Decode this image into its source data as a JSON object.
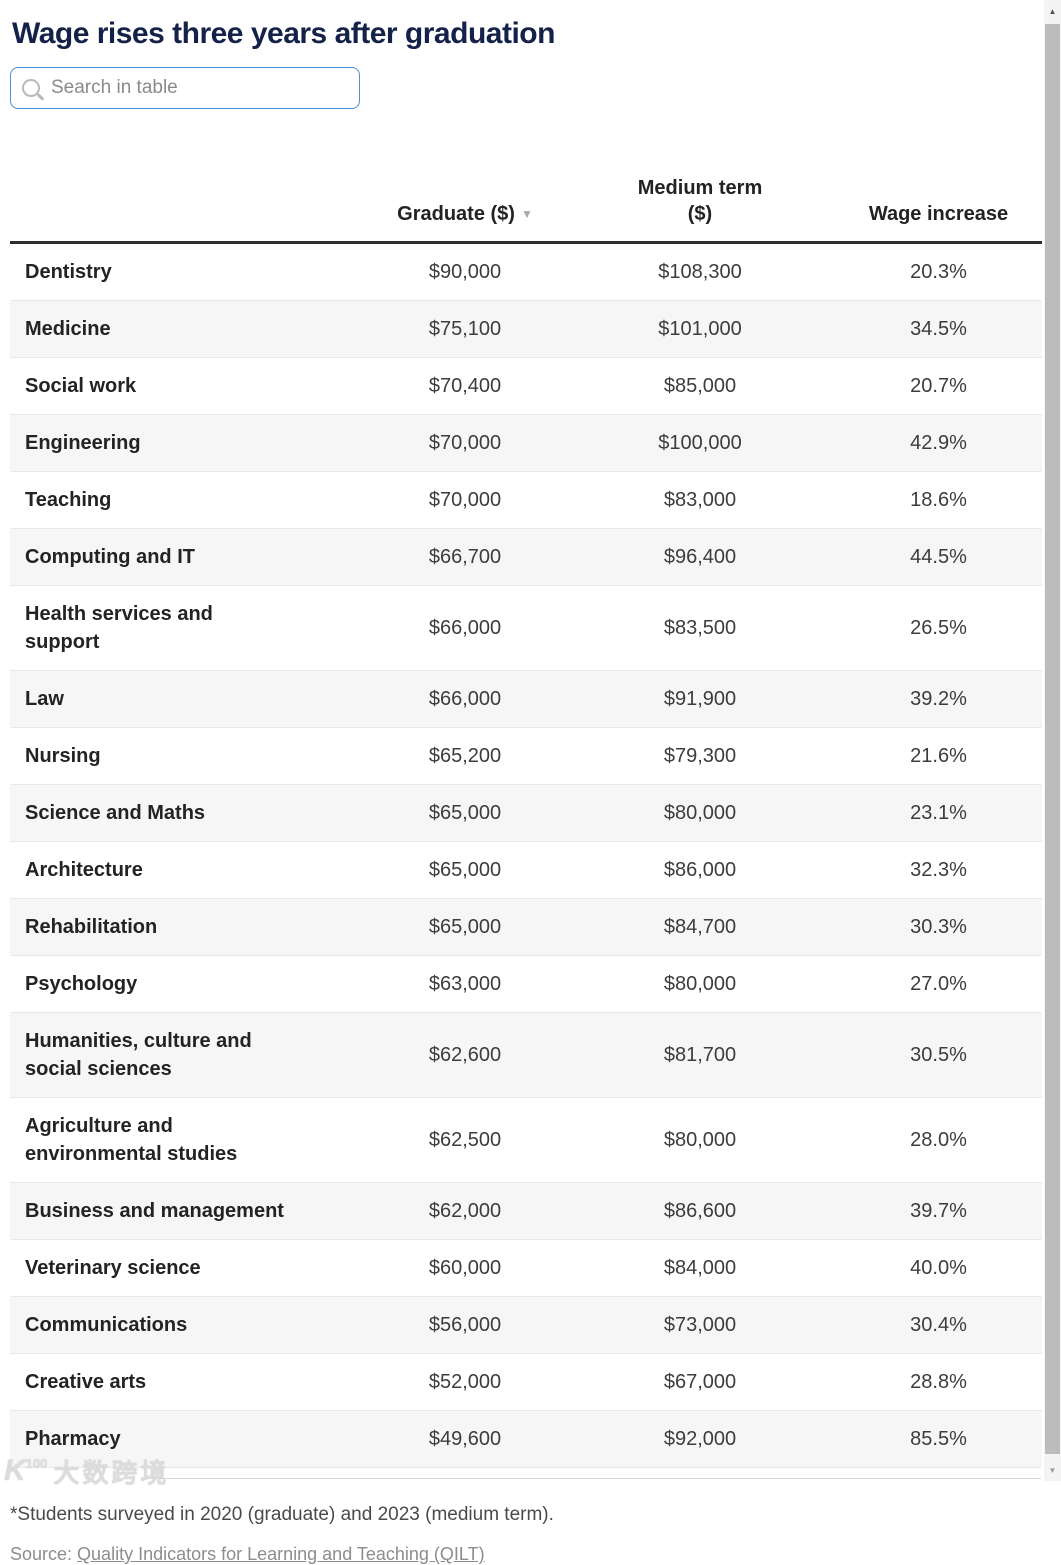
{
  "page": {
    "title": "Wage rises three years after graduation"
  },
  "search": {
    "placeholder": "Search in table",
    "icon": "magnifier"
  },
  "table": {
    "header": {
      "field": "",
      "graduate": "Graduate ($)",
      "sort_icon": "▼",
      "medium": "Medium term\n($)",
      "wage": "Wage increase"
    }
  },
  "chart_data": {
    "type": "table",
    "title": "Wage rises three years after graduation",
    "columns": [
      "",
      "Graduate ($)",
      "Medium term ($)",
      "Wage increase"
    ],
    "sorted_by": "Graduate ($) descending",
    "rows": [
      {
        "field": "Dentistry",
        "graduate": "$90,000",
        "medium": "$108,300",
        "increase": "20.3%"
      },
      {
        "field": "Medicine",
        "graduate": "$75,100",
        "medium": "$101,000",
        "increase": "34.5%"
      },
      {
        "field": "Social work",
        "graduate": "$70,400",
        "medium": "$85,000",
        "increase": "20.7%"
      },
      {
        "field": "Engineering",
        "graduate": "$70,000",
        "medium": "$100,000",
        "increase": "42.9%"
      },
      {
        "field": "Teaching",
        "graduate": "$70,000",
        "medium": "$83,000",
        "increase": "18.6%"
      },
      {
        "field": "Computing and IT",
        "graduate": "$66,700",
        "medium": "$96,400",
        "increase": "44.5%"
      },
      {
        "field": "Health services and\nsupport",
        "graduate": "$66,000",
        "medium": "$83,500",
        "increase": "26.5%"
      },
      {
        "field": "Law",
        "graduate": "$66,000",
        "medium": "$91,900",
        "increase": "39.2%"
      },
      {
        "field": "Nursing",
        "graduate": "$65,200",
        "medium": "$79,300",
        "increase": "21.6%"
      },
      {
        "field": "Science and Maths",
        "graduate": "$65,000",
        "medium": "$80,000",
        "increase": "23.1%"
      },
      {
        "field": "Architecture",
        "graduate": "$65,000",
        "medium": "$86,000",
        "increase": "32.3%"
      },
      {
        "field": "Rehabilitation",
        "graduate": "$65,000",
        "medium": "$84,700",
        "increase": "30.3%"
      },
      {
        "field": "Psychology",
        "graduate": "$63,000",
        "medium": "$80,000",
        "increase": "27.0%"
      },
      {
        "field": "Humanities, culture and\nsocial sciences",
        "graduate": "$62,600",
        "medium": "$81,700",
        "increase": "30.5%"
      },
      {
        "field": "Agriculture and\nenvironmental studies",
        "graduate": "$62,500",
        "medium": "$80,000",
        "increase": "28.0%"
      },
      {
        "field": "Business and management",
        "graduate": "$62,000",
        "medium": "$86,600",
        "increase": "39.7%"
      },
      {
        "field": "Veterinary science",
        "graduate": "$60,000",
        "medium": "$84,000",
        "increase": "40.0%"
      },
      {
        "field": "Communications",
        "graduate": "$56,000",
        "medium": "$73,000",
        "increase": "30.4%"
      },
      {
        "field": "Creative arts",
        "graduate": "$52,000",
        "medium": "$67,000",
        "increase": "28.8%"
      },
      {
        "field": "Pharmacy",
        "graduate": "$49,600",
        "medium": "$92,000",
        "increase": "85.5%"
      }
    ]
  },
  "footnote": "*Students surveyed in 2020 (graduate) and 2023 (medium term).",
  "source": {
    "prefix": "Source: ",
    "link_text": "Quality Indicators for Learning and Teaching (QILT)"
  },
  "watermark": {
    "k": "K",
    "sup": "100",
    "cn": "大数跨境"
  },
  "scrollbar": {
    "up_icon": "▲",
    "down_icon": "▼"
  },
  "colors": {
    "title": "#14224a",
    "header_text": "#222222",
    "row_stripe": "#f6f6f6",
    "header_rule": "#2e2e2e",
    "search_border": "#4d90d2",
    "footnote_text": "#4a4a4a",
    "source_text": "#8d8d8d"
  }
}
